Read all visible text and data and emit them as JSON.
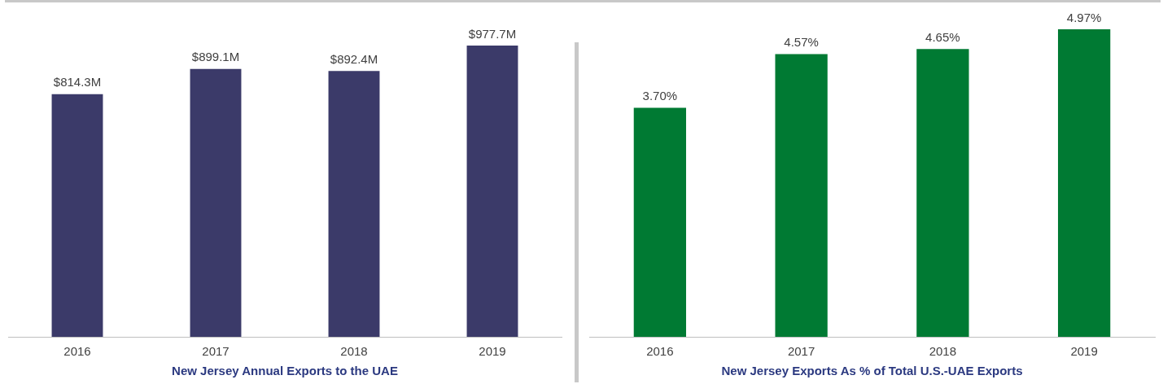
{
  "chart_data": [
    {
      "type": "bar",
      "title": "New Jersey Annual Exports to the UAE",
      "categories": [
        "2016",
        "2017",
        "2018",
        "2019"
      ],
      "values": [
        814.3,
        899.1,
        892.4,
        977.7
      ],
      "value_labels": [
        "$814.3M",
        "$899.1M",
        "$892.4M",
        "$977.7M"
      ],
      "color": "#3b3a69"
    },
    {
      "type": "bar",
      "title": "New Jersey Exports As % of Total U.S.-UAE Exports",
      "categories": [
        "2016",
        "2017",
        "2018",
        "2019"
      ],
      "values": [
        3.7,
        4.57,
        4.65,
        4.97
      ],
      "value_labels": [
        "3.70%",
        "4.57%",
        "4.65%",
        "4.97%"
      ],
      "color": "#007a33"
    }
  ]
}
